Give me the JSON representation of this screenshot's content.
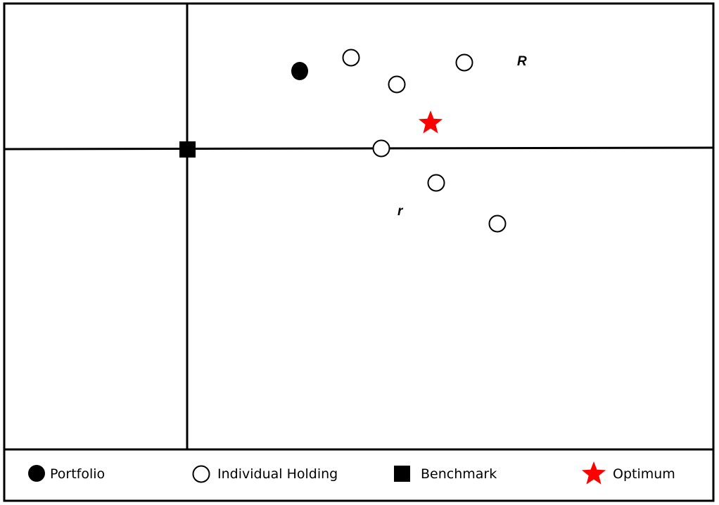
{
  "colors": {
    "line": "#000000",
    "holding_fill": "#ffffff",
    "portfolio_fill": "#000000",
    "benchmark_fill": "#000000",
    "optimum_fill": "#ff0000"
  },
  "labels": {
    "upper": "R",
    "lower": "r"
  },
  "legend": {
    "portfolio": "Portfolio",
    "holding": "Individual Holding",
    "benchmark": "Benchmark",
    "optimum": "Optimum"
  },
  "icons": {
    "portfolio": "filled-circle-icon",
    "holding": "open-circle-icon",
    "benchmark": "filled-square-icon",
    "optimum": "red-star-icon"
  }
}
